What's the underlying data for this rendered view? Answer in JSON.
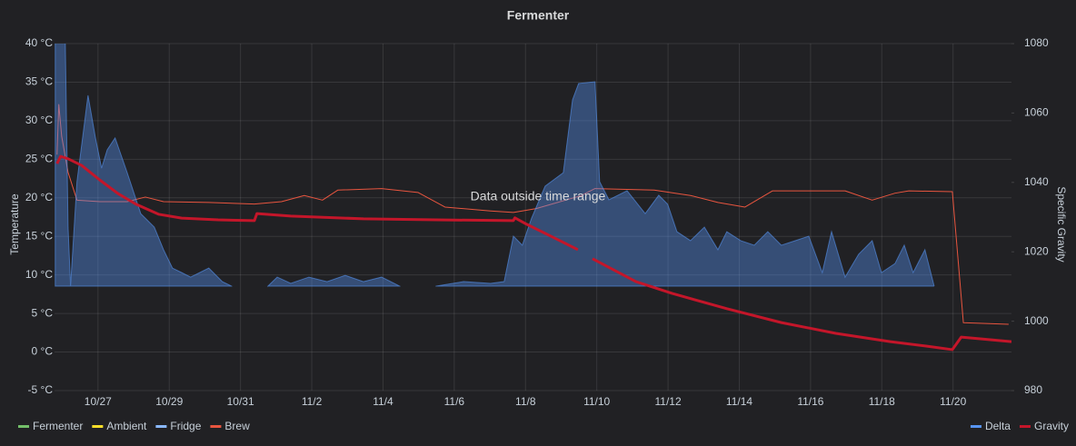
{
  "chart_data": {
    "type": "line",
    "title": "Fermenter",
    "annotation": "Data outside time range",
    "y_label": "Temperature",
    "y2_label": "Specific Gravity",
    "xlim": [
      -1.22,
      25.64
    ],
    "xticks": [
      {
        "value": 0,
        "label": "10/27"
      },
      {
        "value": 2,
        "label": "10/29"
      },
      {
        "value": 4,
        "label": "10/31"
      },
      {
        "value": 6,
        "label": "11/2"
      },
      {
        "value": 8,
        "label": "11/4"
      },
      {
        "value": 10,
        "label": "11/6"
      },
      {
        "value": 12,
        "label": "11/8"
      },
      {
        "value": 14,
        "label": "11/10"
      },
      {
        "value": 16,
        "label": "11/12"
      },
      {
        "value": 18,
        "label": "11/14"
      },
      {
        "value": 20,
        "label": "11/16"
      },
      {
        "value": 22,
        "label": "11/18"
      },
      {
        "value": 24,
        "label": "11/20"
      }
    ],
    "ylim": [
      -5,
      40
    ],
    "yticks": [
      {
        "value": -5,
        "label": "-5 °C"
      },
      {
        "value": 0,
        "label": "0 °C"
      },
      {
        "value": 5,
        "label": "5 °C"
      },
      {
        "value": 10,
        "label": "10 °C"
      },
      {
        "value": 15,
        "label": "15 °C"
      },
      {
        "value": 20,
        "label": "20 °C"
      },
      {
        "value": 25,
        "label": "25 °C"
      },
      {
        "value": 30,
        "label": "30 °C"
      },
      {
        "value": 35,
        "label": "35 °C"
      },
      {
        "value": 40,
        "label": "40 °C"
      }
    ],
    "y2lim": [
      980,
      1080
    ],
    "y2ticks": [
      980,
      1000,
      1020,
      1040,
      1060,
      1080
    ],
    "grid": true,
    "series": [
      {
        "name": "Fermenter",
        "color": "#73bf69",
        "x": [],
        "values": []
      },
      {
        "name": "Ambient",
        "color": "#fade2a",
        "x": [],
        "values": []
      },
      {
        "name": "Fridge",
        "color": "#8ab8ff",
        "x": [],
        "values": []
      },
      {
        "name": "Brew",
        "color": "#e8553f",
        "line_width": 1,
        "x": [
          -1.15,
          -1.1,
          -1.02,
          -0.84,
          -0.59,
          0.05,
          0.82,
          1.33,
          1.84,
          3.11,
          4.39,
          5.15,
          5.79,
          6.3,
          6.73,
          7.96,
          8.98,
          9.74,
          11.02,
          11.66,
          12.3,
          13.57,
          13.95,
          15.61,
          16.63,
          17.4,
          18.16,
          18.93,
          20.97,
          21.73,
          22.37,
          22.76,
          23.98,
          24.29,
          25.56
        ],
        "values": [
          25.6,
          32.1,
          28.0,
          23.3,
          19.7,
          19.5,
          19.5,
          20.1,
          19.5,
          19.4,
          19.2,
          19.5,
          20.3,
          19.7,
          21.0,
          21.2,
          20.7,
          18.8,
          18.3,
          18.1,
          18.6,
          20.3,
          21.2,
          21.0,
          20.3,
          19.4,
          18.8,
          20.9,
          20.9,
          19.7,
          20.6,
          20.9,
          20.8,
          3.8,
          3.6
        ]
      },
      {
        "name": "Delta",
        "color": "#5794f2",
        "axis": "y2",
        "fill": true,
        "line_width": 1,
        "x": [
          -1.2,
          -0.92,
          -0.84,
          -0.77,
          -0.59,
          -0.28,
          -0.08,
          0.1,
          0.26,
          0.48,
          0.82,
          1.2,
          1.58,
          1.84,
          2.09,
          2.35,
          2.6,
          3.11,
          3.49,
          3.75,
          4.26,
          4.77,
          5.03,
          5.41,
          5.92,
          6.43,
          6.94,
          7.45,
          7.96,
          8.47,
          9.0,
          9.49,
          10.26,
          11.02,
          11.4,
          11.66,
          11.91,
          12.17,
          12.55,
          13.06,
          13.32,
          13.49,
          13.95,
          14.08,
          14.34,
          14.85,
          15.36,
          15.74,
          15.99,
          16.25,
          16.63,
          17.02,
          17.4,
          17.65,
          18.04,
          18.42,
          18.8,
          19.18,
          19.57,
          19.95,
          20.33,
          20.59,
          20.97,
          21.35,
          21.73,
          21.99,
          22.37,
          22.63,
          22.88,
          23.21,
          23.47
        ],
        "values": [
          1082,
          1082,
          1027.1,
          1010.1,
          1040.2,
          1065.1,
          1053.3,
          1044.1,
          1049.4,
          1052.8,
          1042.8,
          1031.0,
          1027.1,
          1020.6,
          1015.3,
          1014.0,
          1012.7,
          1015.3,
          1011.4,
          1010.1,
          null,
          1010.1,
          1012.7,
          1010.9,
          1012.7,
          1011.4,
          1013.2,
          1011.4,
          1012.7,
          1010.1,
          null,
          1010.1,
          1011.4,
          1010.9,
          1011.4,
          1024.5,
          1021.9,
          1029.7,
          1038.9,
          1042.8,
          1063.8,
          1068.5,
          1069.0,
          1040.2,
          1035.0,
          1037.6,
          1031.0,
          1036.3,
          1033.7,
          1025.8,
          1023.2,
          1027.1,
          1020.6,
          1025.8,
          1023.2,
          1021.9,
          1025.8,
          1021.9,
          1023.2,
          1024.5,
          1014.0,
          1025.8,
          1012.7,
          1019.3,
          1023.2,
          1014.0,
          1016.6,
          1021.9,
          1014.0,
          1020.6,
          1010.1
        ]
      },
      {
        "name": "Gravity",
        "color": "#c4162a",
        "axis": "y2",
        "line_width": 3,
        "x": [
          -1.15,
          -1.05,
          -0.84,
          -0.46,
          0.05,
          0.56,
          1.07,
          1.71,
          2.35,
          3.37,
          4.39,
          4.46,
          5.41,
          7.45,
          9.49,
          11.66,
          11.7,
          12.04,
          12.81,
          13.47,
          13.7,
          13.88,
          15.1,
          16.12,
          17.65,
          19.18,
          20.71,
          22.24,
          23.27,
          23.98,
          24.23,
          24.8,
          25.64
        ],
        "values": [
          1045.4,
          1047.5,
          1046.8,
          1044.9,
          1040.7,
          1036.8,
          1033.7,
          1030.8,
          1029.7,
          1029.2,
          1029.0,
          1031.0,
          1030.3,
          1029.5,
          1029.2,
          1029.0,
          1029.8,
          1027.9,
          1024.0,
          1020.6,
          null,
          1018.0,
          1011.4,
          1008.0,
          1003.6,
          999.6,
          996.5,
          994.1,
          992.8,
          991.8,
          995.4,
          994.9,
          994.1
        ]
      }
    ]
  }
}
